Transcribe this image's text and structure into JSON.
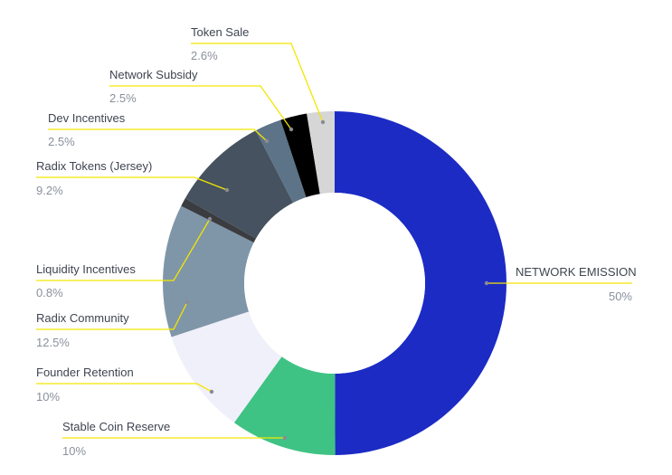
{
  "colors": {
    "leader": "#f3e600",
    "leader_right": "#a7a9b4",
    "label_name": "#3f4450",
    "label_value": "#8a909c",
    "center": "#ffffff"
  },
  "chart_data": {
    "type": "pie",
    "subtype": "donut",
    "direction": "clockwise",
    "start": "top",
    "slices": [
      {
        "key": "network-emission",
        "label": "NETWORK EMISSION",
        "value_text": "50%",
        "value": 50.0,
        "color": "#1c2bc4",
        "label_side": "right"
      },
      {
        "key": "stable-coin-reserve",
        "label": "Stable Coin Reserve",
        "value_text": "10%",
        "value": 10.0,
        "color": "#3fc384",
        "label_side": "left"
      },
      {
        "key": "founder-retention",
        "label": "Founder Retention",
        "value_text": "10%",
        "value": 10.0,
        "color": "#f0f0fa",
        "label_side": "left"
      },
      {
        "key": "radix-community",
        "label": "Radix Community",
        "value_text": "12.5%",
        "value": 12.5,
        "color": "#7f96a8",
        "label_side": "left"
      },
      {
        "key": "liquidity-incentives",
        "label": "Liquidity Incentives",
        "value_text": "0.8%",
        "value": 0.8,
        "color": "#3a3c40",
        "label_side": "left"
      },
      {
        "key": "radix-tokens-jersey",
        "label": "Radix Tokens (Jersey)",
        "value_text": "9.2%",
        "value": 9.2,
        "color": "#46525f",
        "label_side": "left"
      },
      {
        "key": "dev-incentives",
        "label": "Dev Incentives",
        "value_text": "2.5%",
        "value": 2.5,
        "color": "#5c7388",
        "label_side": "left"
      },
      {
        "key": "network-subsidy",
        "label": "Network Subsidy",
        "value_text": "2.5%",
        "value": 2.5,
        "color": "#000000",
        "label_side": "left"
      },
      {
        "key": "token-sale",
        "label": "Token Sale",
        "value_text": "2.6%",
        "value": 2.6,
        "color": "#d6d6d6",
        "label_side": "left"
      }
    ]
  }
}
